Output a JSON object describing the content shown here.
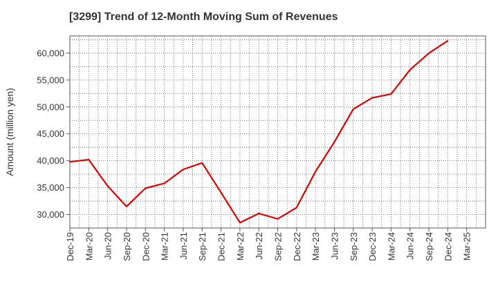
{
  "chart_data": {
    "type": "line",
    "title": "[3299]  Trend of 12-Month Moving Sum of Revenues",
    "xlabel": "",
    "ylabel": "Amount (million yen)",
    "ylim": [
      27500,
      63200
    ],
    "y_ticks": [
      "30,000",
      "35,000",
      "40,000",
      "45,000",
      "50,000",
      "55,000",
      "60,000"
    ],
    "y_tick_values": [
      30000,
      35000,
      40000,
      45000,
      50000,
      55000,
      60000
    ],
    "grid": true,
    "legend": "none",
    "categories": [
      "Dec-19",
      "Mar-20",
      "Jun-20",
      "Sep-20",
      "Dec-20",
      "Mar-21",
      "Jun-21",
      "Sep-21",
      "Dec-21",
      "Mar-22",
      "Jun-22",
      "Sep-22",
      "Dec-22",
      "Mar-23",
      "Jun-23",
      "Sep-23",
      "Dec-23",
      "Mar-24",
      "Jun-24",
      "Sep-24",
      "Dec-24",
      "Mar-25"
    ],
    "series": [
      {
        "color": "#e00000",
        "values": [
          39800,
          40200,
          35300,
          31500,
          34900,
          35800,
          38400,
          39600,
          34100,
          28500,
          30200,
          29200,
          31300,
          38000,
          43500,
          49600,
          51700,
          52400,
          56900,
          60000,
          62300,
          null
        ]
      }
    ]
  }
}
